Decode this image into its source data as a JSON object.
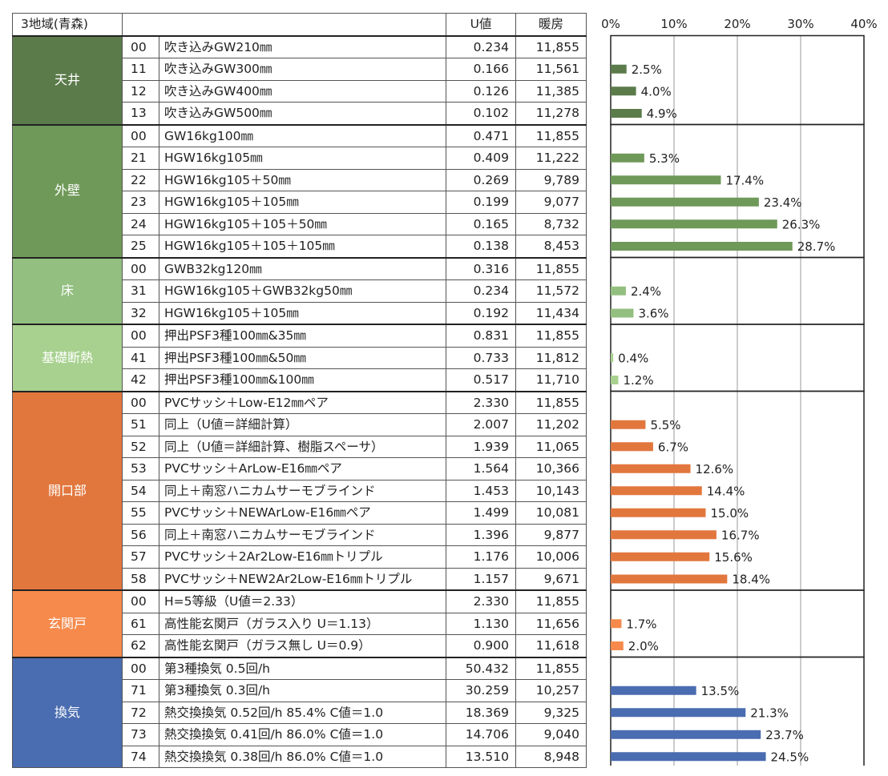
{
  "header": {
    "region": "3地域(青森)",
    "u_value": "U値",
    "heating": "暖房"
  },
  "colors": {
    "天井": "#5b7b4b",
    "外壁": "#6f9959",
    "床": "#93bf80",
    "基礎断熱": "#a8d18f",
    "開口部": "#e2773e",
    "玄関戸": "#f58a4c",
    "換気": "#4a6cb0"
  },
  "groups": [
    {
      "name": "天井",
      "rows": [
        {
          "code": "00",
          "desc": "吹き込みGW210㎜",
          "u": "0.234",
          "heat": "11,855"
        },
        {
          "code": "11",
          "desc": "吹き込みGW300㎜",
          "u": "0.166",
          "heat": "11,561"
        },
        {
          "code": "12",
          "desc": "吹き込みGW400㎜",
          "u": "0.126",
          "heat": "11,385"
        },
        {
          "code": "13",
          "desc": "吹き込みGW500㎜",
          "u": "0.102",
          "heat": "11,278"
        }
      ]
    },
    {
      "name": "外壁",
      "rows": [
        {
          "code": "00",
          "desc": "GW16kg100㎜",
          "u": "0.471",
          "heat": "11,855"
        },
        {
          "code": "21",
          "desc": "HGW16kg105㎜",
          "u": "0.409",
          "heat": "11,222"
        },
        {
          "code": "22",
          "desc": "HGW16kg105＋50㎜",
          "u": "0.269",
          "heat": "9,789"
        },
        {
          "code": "23",
          "desc": "HGW16kg105＋105㎜",
          "u": "0.199",
          "heat": "9,077"
        },
        {
          "code": "24",
          "desc": "HGW16kg105＋105＋50㎜",
          "u": "0.165",
          "heat": "8,732"
        },
        {
          "code": "25",
          "desc": "HGW16kg105＋105＋105㎜",
          "u": "0.138",
          "heat": "8,453"
        }
      ]
    },
    {
      "name": "床",
      "rows": [
        {
          "code": "00",
          "desc": "GWB32kg120㎜",
          "u": "0.316",
          "heat": "11,855"
        },
        {
          "code": "31",
          "desc": "HGW16kg105＋GWB32kg50㎜",
          "u": "0.234",
          "heat": "11,572"
        },
        {
          "code": "32",
          "desc": "HGW16kg105＋105㎜",
          "u": "0.192",
          "heat": "11,434"
        }
      ]
    },
    {
      "name": "基礎断熱",
      "rows": [
        {
          "code": "00",
          "desc": "押出PSF3種100㎜&35㎜",
          "u": "0.831",
          "heat": "11,855"
        },
        {
          "code": "41",
          "desc": "押出PSF3種100㎜&50㎜",
          "u": "0.733",
          "heat": "11,812"
        },
        {
          "code": "42",
          "desc": "押出PSF3種100㎜&100㎜",
          "u": "0.517",
          "heat": "11,710"
        }
      ]
    },
    {
      "name": "開口部",
      "rows": [
        {
          "code": "00",
          "desc": "PVCサッシ＋Low-E12㎜ペア",
          "u": "2.330",
          "heat": "11,855"
        },
        {
          "code": "51",
          "desc": "同上（U値＝詳細計算）",
          "u": "2.007",
          "heat": "11,202"
        },
        {
          "code": "52",
          "desc": "同上（U値＝詳細計算、樹脂スペーサ）",
          "u": "1.939",
          "heat": "11,065"
        },
        {
          "code": "53",
          "desc": "PVCサッシ＋ArLow-E16㎜ペア",
          "u": "1.564",
          "heat": "10,366"
        },
        {
          "code": "54",
          "desc": "同上＋南窓ハニカムサーモブラインド",
          "u": "1.453",
          "heat": "10,143"
        },
        {
          "code": "55",
          "desc": "PVCサッシ＋NEWArLow-E16㎜ペア",
          "u": "1.499",
          "heat": "10,081"
        },
        {
          "code": "56",
          "desc": "同上＋南窓ハニカムサーモブラインド",
          "u": "1.396",
          "heat": "9,877"
        },
        {
          "code": "57",
          "desc": "PVCサッシ＋2Ar2Low-E16㎜トリプル",
          "u": "1.176",
          "heat": "10,006"
        },
        {
          "code": "58",
          "desc": "PVCサッシ＋NEW2Ar2Low-E16㎜トリプル",
          "u": "1.157",
          "heat": "9,671"
        }
      ]
    },
    {
      "name": "玄関戸",
      "rows": [
        {
          "code": "00",
          "desc": "H=5等級（U値＝2.33）",
          "u": "2.330",
          "heat": "11,855"
        },
        {
          "code": "61",
          "desc": "高性能玄関戸（ガラス入り U＝1.13）",
          "u": "1.130",
          "heat": "11,656"
        },
        {
          "code": "62",
          "desc": "高性能玄関戸（ガラス無し U＝0.9）",
          "u": "0.900",
          "heat": "11,618"
        }
      ]
    },
    {
      "name": "換気",
      "rows": [
        {
          "code": "00",
          "desc": "第3種換気 0.5回/h",
          "u": "50.432",
          "heat": "11,855"
        },
        {
          "code": "71",
          "desc": "第3種換気 0.3回/h",
          "u": "30.259",
          "heat": "10,257"
        },
        {
          "code": "72",
          "desc": "熱交換換気 0.52回/h 85.4% C値＝1.0",
          "u": "18.369",
          "heat": "9,325"
        },
        {
          "code": "73",
          "desc": "熱交換換気 0.41回/h 86.0% C値＝1.0",
          "u": "14.706",
          "heat": "9,040"
        },
        {
          "code": "74",
          "desc": "熱交換換気 0.38回/h 86.0% C値＝1.0",
          "u": "13.510",
          "heat": "8,948"
        }
      ]
    }
  ],
  "chart_data": {
    "type": "bar",
    "orientation": "horizontal",
    "xlim": [
      0,
      40
    ],
    "xticks": [
      "0%",
      "10%",
      "20%",
      "30%",
      "40%"
    ],
    "grid": true,
    "categories": [
      "00",
      "11",
      "12",
      "13",
      "00",
      "21",
      "22",
      "23",
      "24",
      "25",
      "00",
      "31",
      "32",
      "00",
      "41",
      "42",
      "00",
      "51",
      "52",
      "53",
      "54",
      "55",
      "56",
      "57",
      "58",
      "00",
      "61",
      "62",
      "00",
      "71",
      "72",
      "73",
      "74"
    ],
    "values": [
      null,
      2.5,
      4.0,
      4.9,
      null,
      5.3,
      17.4,
      23.4,
      26.3,
      28.7,
      null,
      2.4,
      3.6,
      null,
      0.4,
      1.2,
      null,
      5.5,
      6.7,
      12.6,
      14.4,
      15.0,
      16.7,
      15.6,
      18.4,
      null,
      1.7,
      2.0,
      null,
      13.5,
      21.3,
      23.7,
      24.5
    ],
    "labels": [
      "",
      "2.5%",
      "4.0%",
      "4.9%",
      "",
      "5.3%",
      "17.4%",
      "23.4%",
      "26.3%",
      "28.7%",
      "",
      "2.4%",
      "3.6%",
      "",
      "0.4%",
      "1.2%",
      "",
      "5.5%",
      "6.7%",
      "12.6%",
      "14.4%",
      "15.0%",
      "16.7%",
      "15.6%",
      "18.4%",
      "",
      "1.7%",
      "2.0%",
      "",
      "13.5%",
      "21.3%",
      "23.7%",
      "24.5%"
    ]
  }
}
